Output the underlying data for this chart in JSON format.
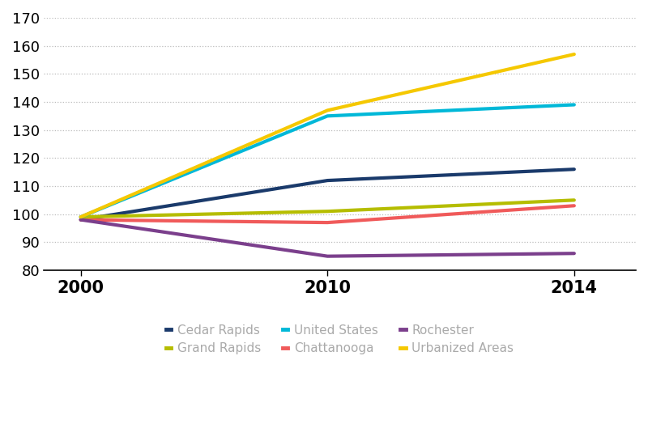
{
  "x_positions": [
    0,
    1,
    2
  ],
  "x_labels": [
    "2000",
    "2010",
    "2014"
  ],
  "series": {
    "Cedar Rapids": {
      "values": [
        98,
        112,
        116
      ],
      "color": "#1a3a6b",
      "linewidth": 3.0
    },
    "Chattanooga": {
      "values": [
        98,
        97,
        103
      ],
      "color": "#f05a5a",
      "linewidth": 3.0
    },
    "Grand Rapids": {
      "values": [
        99,
        101,
        105
      ],
      "color": "#b5bd00",
      "linewidth": 3.0
    },
    "Rochester": {
      "values": [
        98,
        85,
        86
      ],
      "color": "#7b3f8c",
      "linewidth": 3.0
    },
    "United States": {
      "values": [
        99,
        135,
        139
      ],
      "color": "#00b8d8",
      "linewidth": 3.0
    },
    "Urbanized Areas": {
      "values": [
        99,
        137,
        157
      ],
      "color": "#f5c800",
      "linewidth": 3.0
    }
  },
  "ylim": [
    80,
    170
  ],
  "yticks": [
    80,
    90,
    100,
    110,
    120,
    130,
    140,
    150,
    160,
    170
  ],
  "grid_color": "#bbbbbb",
  "grid_style": ":",
  "background_color": "#ffffff",
  "legend_order": [
    "Cedar Rapids",
    "Grand Rapids",
    "United States",
    "Chattanooga",
    "Rochester",
    "Urbanized Areas"
  ],
  "legend_text_color": "#aaaaaa",
  "x_label_fontsize": 15,
  "y_label_fontsize": 13,
  "legend_fontsize": 11
}
